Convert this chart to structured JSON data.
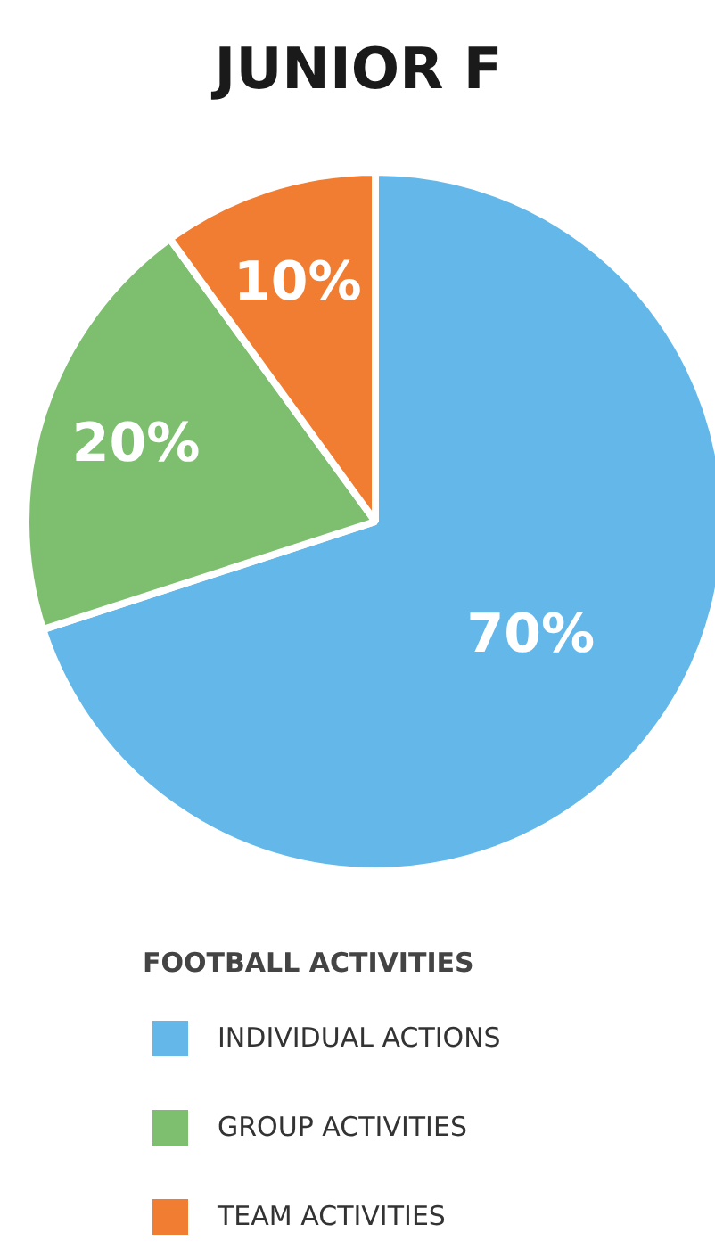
{
  "chart_data": {
    "type": "pie",
    "title": "JUNIOR F",
    "legend_title": "FOOTBALL ACTIVITIES",
    "categories": [
      "INDIVIDUAL ACTIONS",
      "GROUP ACTIVITIES",
      "TEAM ACTIVITIES"
    ],
    "values": [
      70,
      20,
      10
    ],
    "colors": [
      "#63b8e9",
      "#7dbf6f",
      "#f07d32"
    ],
    "value_labels": [
      "70%",
      "20%",
      "10%"
    ],
    "legend": "bottom"
  }
}
